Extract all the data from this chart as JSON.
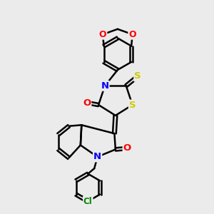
{
  "bg_color": "#ebebeb",
  "atom_colors": {
    "N": "#0000ff",
    "O": "#ff0000",
    "S": "#cccc00",
    "Cl": "#008800",
    "C": "#000000"
  },
  "bond_color": "#000000",
  "bond_width": 1.8,
  "figsize": [
    3.0,
    3.0
  ],
  "dpi": 100
}
